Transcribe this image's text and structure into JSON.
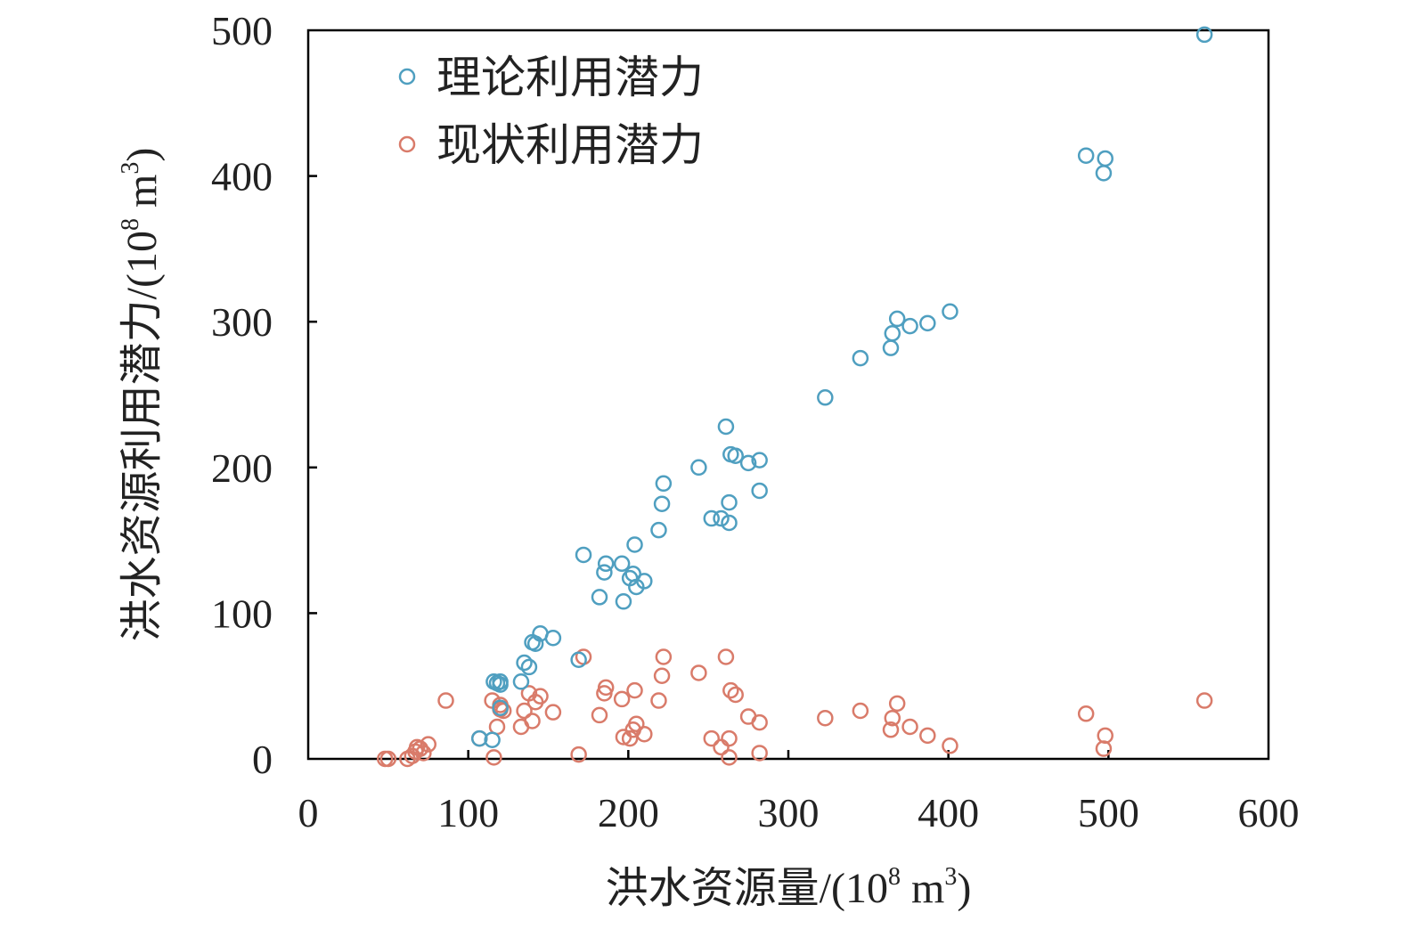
{
  "chart_data": {
    "type": "scatter",
    "xlabel": "洪水资源量/(10⁸ m³)",
    "ylabel": "洪水资源利用潜力/(10⁸ m³)",
    "xlabel_parts": {
      "main": "洪水资源量/(10",
      "exp": "8",
      "unit": " m",
      "unit_exp": "3",
      "close": ")"
    },
    "ylabel_parts": {
      "main": "洪水资源利用潜力/(10",
      "exp": "8",
      "unit": " m",
      "unit_exp": "3",
      "close": ")"
    },
    "xlim": [
      0,
      600
    ],
    "ylim": [
      0,
      500
    ],
    "xticks": [
      0,
      100,
      200,
      300,
      400,
      500,
      600
    ],
    "yticks": [
      0,
      100,
      200,
      300,
      400,
      500
    ],
    "legend_position": "top-left",
    "colors": {
      "theoretical": "#4f9fc0",
      "current": "#d97b6a"
    },
    "series": [
      {
        "key": "theoretical",
        "name": "理论利用潜力",
        "points": [
          [
            560,
            497
          ],
          [
            486,
            414
          ],
          [
            498,
            412
          ],
          [
            497,
            402
          ],
          [
            401,
            307
          ],
          [
            387,
            299
          ],
          [
            376,
            297
          ],
          [
            368,
            302
          ],
          [
            365,
            292
          ],
          [
            364,
            282
          ],
          [
            345,
            275
          ],
          [
            323,
            248
          ],
          [
            261,
            228
          ],
          [
            244,
            200
          ],
          [
            264,
            209
          ],
          [
            267,
            208
          ],
          [
            275,
            203
          ],
          [
            282,
            205
          ],
          [
            282,
            184
          ],
          [
            263,
            176
          ],
          [
            222,
            189
          ],
          [
            221,
            175
          ],
          [
            219,
            157
          ],
          [
            252,
            165
          ],
          [
            258,
            165
          ],
          [
            263,
            162
          ],
          [
            172,
            140
          ],
          [
            186,
            134
          ],
          [
            196,
            134
          ],
          [
            185,
            128
          ],
          [
            204,
            147
          ],
          [
            203,
            127
          ],
          [
            210,
            122
          ],
          [
            205,
            118
          ],
          [
            201,
            124
          ],
          [
            182,
            111
          ],
          [
            197,
            108
          ],
          [
            145,
            86
          ],
          [
            153,
            83
          ],
          [
            140,
            80
          ],
          [
            142,
            79
          ],
          [
            169,
            68
          ],
          [
            135,
            66
          ],
          [
            138,
            63
          ],
          [
            133,
            53
          ],
          [
            120,
            53
          ],
          [
            116,
            53
          ],
          [
            120,
            51
          ],
          [
            118,
            52
          ],
          [
            107,
            14
          ],
          [
            115,
            13
          ],
          [
            120,
            35
          ]
        ]
      },
      {
        "key": "current",
        "name": "现状利用潜力",
        "points": [
          [
            560,
            40
          ],
          [
            486,
            31
          ],
          [
            498,
            16
          ],
          [
            497,
            7
          ],
          [
            401,
            9
          ],
          [
            387,
            16
          ],
          [
            376,
            22
          ],
          [
            368,
            38
          ],
          [
            365,
            28
          ],
          [
            364,
            20
          ],
          [
            345,
            33
          ],
          [
            323,
            28
          ],
          [
            261,
            70
          ],
          [
            244,
            59
          ],
          [
            264,
            47
          ],
          [
            267,
            44
          ],
          [
            275,
            29
          ],
          [
            282,
            25
          ],
          [
            282,
            4
          ],
          [
            263,
            1
          ],
          [
            222,
            70
          ],
          [
            221,
            57
          ],
          [
            219,
            40
          ],
          [
            252,
            14
          ],
          [
            258,
            8
          ],
          [
            263,
            14
          ],
          [
            172,
            70
          ],
          [
            186,
            49
          ],
          [
            196,
            41
          ],
          [
            185,
            45
          ],
          [
            204,
            47
          ],
          [
            203,
            20
          ],
          [
            210,
            17
          ],
          [
            205,
            24
          ],
          [
            201,
            14
          ],
          [
            182,
            30
          ],
          [
            197,
            15
          ],
          [
            145,
            43
          ],
          [
            153,
            32
          ],
          [
            140,
            26
          ],
          [
            142,
            39
          ],
          [
            169,
            3
          ],
          [
            135,
            33
          ],
          [
            138,
            45
          ],
          [
            133,
            22
          ],
          [
            120,
            37
          ],
          [
            116,
            1
          ],
          [
            120,
            34
          ],
          [
            118,
            22
          ],
          [
            107,
            14
          ],
          [
            115,
            40
          ],
          [
            86,
            40
          ],
          [
            48,
            0
          ],
          [
            50,
            0
          ],
          [
            62,
            0
          ],
          [
            65,
            2
          ],
          [
            67,
            5
          ],
          [
            68,
            8
          ],
          [
            70,
            7
          ],
          [
            72,
            4
          ],
          [
            75,
            10
          ],
          [
            122,
            33
          ]
        ]
      }
    ]
  }
}
